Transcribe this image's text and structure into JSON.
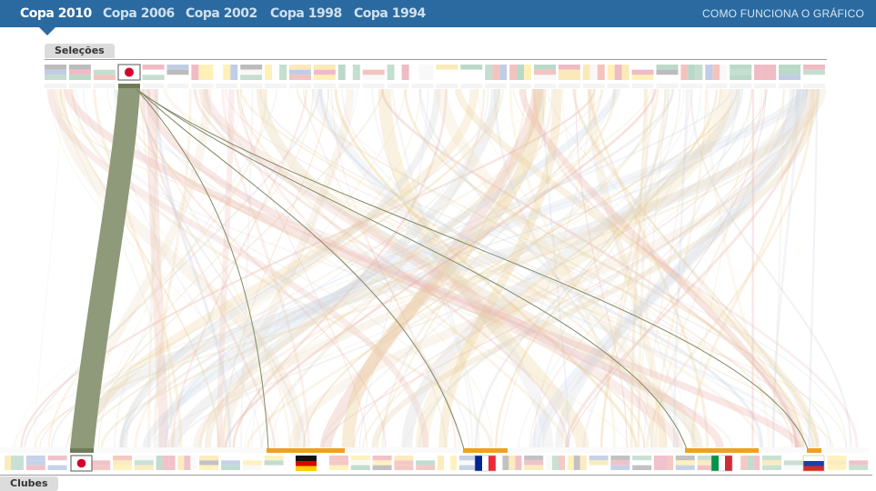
{
  "tabs": [
    {
      "label": "Copa 2010",
      "active": true
    },
    {
      "label": "Copa 2006",
      "active": false
    },
    {
      "label": "Copa 2002",
      "active": false
    },
    {
      "label": "Copa 1998",
      "active": false
    },
    {
      "label": "Copa 1994",
      "active": false
    }
  ],
  "help_link": "COMO FUNCIONA O GRÁFICO",
  "top_section_label": "Seleções",
  "bottom_section_label": "Clubes",
  "selected_team": {
    "flag": "japan-flag"
  },
  "highlighted_clubs": [
    {
      "flag": "japan-flag",
      "players": 19
    },
    {
      "flag": "germany-flag",
      "players": 2
    },
    {
      "flag": "france-flag",
      "players": 1
    },
    {
      "flag": "italy-flag",
      "players": 1
    },
    {
      "flag": "russia-flag",
      "players": 1
    }
  ],
  "colors": {
    "header": "#2a6aa0",
    "selected_flow": "#8e9a7a",
    "club_bar": "#f0a020"
  }
}
